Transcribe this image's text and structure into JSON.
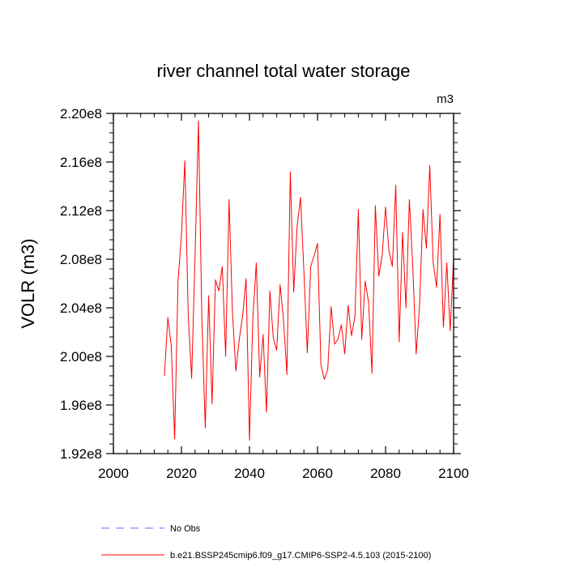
{
  "chart_data": {
    "type": "line",
    "title": "river channel total water storage",
    "units": "m3",
    "xlabel": "",
    "ylabel": "VOLR  (m3)",
    "xlim": [
      2000,
      2100
    ],
    "ylim": [
      192000000.0,
      220000000.0
    ],
    "xticks": [
      2000,
      2020,
      2040,
      2060,
      2080,
      2100
    ],
    "xtick_labels": [
      "2000",
      "2020",
      "2040",
      "2060",
      "2080",
      "2100"
    ],
    "yticks": [
      192000000.0,
      196000000.0,
      200000000.0,
      204000000.0,
      208000000.0,
      212000000.0,
      216000000.0,
      220000000.0
    ],
    "ytick_labels": [
      "1.92e8",
      "1.96e8",
      "2.00e8",
      "2.04e8",
      "2.08e8",
      "2.12e8",
      "2.16e8",
      "2.20e8"
    ],
    "grid": false,
    "legend": [
      {
        "label": "No Obs",
        "color": "#0000ff",
        "style": "dashed"
      },
      {
        "label": "b.e21.BSSP245cmip6.f09_g17.CMIP6-SSP2-4.5.103 (2015-2100)",
        "color": "#ff0000",
        "style": "solid"
      }
    ],
    "series": [
      {
        "name": "b.e21.BSSP245cmip6.f09_g17.CMIP6-SSP2-4.5.103 (2015-2100)",
        "color": "#ff0000",
        "x": [
          2015,
          2016,
          2017,
          2018,
          2019,
          2020,
          2021,
          2022,
          2023,
          2024,
          2025,
          2026,
          2027,
          2028,
          2029,
          2030,
          2031,
          2032,
          2033,
          2034,
          2035,
          2036,
          2037,
          2038,
          2039,
          2040,
          2041,
          2042,
          2043,
          2044,
          2045,
          2046,
          2047,
          2048,
          2049,
          2050,
          2051,
          2052,
          2053,
          2054,
          2055,
          2056,
          2057,
          2058,
          2059,
          2060,
          2061,
          2062,
          2063,
          2064,
          2065,
          2066,
          2067,
          2068,
          2069,
          2070,
          2071,
          2072,
          2073,
          2074,
          2075,
          2076,
          2077,
          2078,
          2079,
          2080,
          2081,
          2082,
          2083,
          2084,
          2085,
          2086,
          2087,
          2088,
          2089,
          2090,
          2091,
          2092,
          2093,
          2094,
          2095,
          2096,
          2097,
          2098,
          2099,
          2100
        ],
        "values": [
          198400000.0,
          203200000.0,
          200900000.0,
          193200000.0,
          206200000.0,
          210000000.0,
          216100000.0,
          203300000.0,
          198200000.0,
          208200000.0,
          219400000.0,
          203200000.0,
          194100000.0,
          205000000.0,
          196100000.0,
          206300000.0,
          205400000.0,
          207400000.0,
          200000000.0,
          212900000.0,
          203600000.0,
          198800000.0,
          201400000.0,
          203400000.0,
          206400000.0,
          193100000.0,
          203200000.0,
          207700000.0,
          198300000.0,
          201800000.0,
          195400000.0,
          205400000.0,
          201500000.0,
          200500000.0,
          205900000.0,
          203000000.0,
          198500000.0,
          215200000.0,
          205300000.0,
          210700000.0,
          213100000.0,
          207000000.0,
          200300000.0,
          207400000.0,
          208300000.0,
          209300000.0,
          199300000.0,
          198100000.0,
          198900000.0,
          204100000.0,
          201000000.0,
          201400000.0,
          202600000.0,
          200200000.0,
          204200000.0,
          201700000.0,
          203300000.0,
          212100000.0,
          201400000.0,
          206200000.0,
          204500000.0,
          198600000.0,
          212400000.0,
          206600000.0,
          208300000.0,
          212300000.0,
          208700000.0,
          207400000.0,
          214100000.0,
          201200000.0,
          210200000.0,
          204000000.0,
          212900000.0,
          207400000.0,
          200200000.0,
          204200000.0,
          212100000.0,
          208900000.0,
          215700000.0,
          207700000.0,
          205700000.0,
          211700000.0,
          202400000.0,
          207700000.0,
          202100000.0,
          208200000.0
        ]
      }
    ]
  }
}
